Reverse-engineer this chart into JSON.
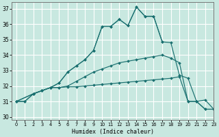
{
  "xlabel": "Humidex (Indice chaleur)",
  "xlim": [
    -0.5,
    23
  ],
  "ylim": [
    29.8,
    37.4
  ],
  "yticks": [
    30,
    31,
    32,
    33,
    34,
    35,
    36,
    37
  ],
  "xticks": [
    0,
    1,
    2,
    3,
    4,
    5,
    6,
    7,
    8,
    9,
    10,
    11,
    12,
    13,
    14,
    15,
    16,
    17,
    18,
    19,
    20,
    21,
    22,
    23
  ],
  "bg_color": "#c8e8e0",
  "grid_color": "#ffffff",
  "line_color": "#1a7070",
  "line1_x": [
    0,
    2,
    3,
    4,
    5,
    6,
    7,
    8,
    9,
    10,
    11,
    12,
    13,
    14,
    15,
    16,
    17,
    18,
    19,
    20,
    21,
    22,
    23
  ],
  "line1_y": [
    31.0,
    31.5,
    31.7,
    31.9,
    32.2,
    32.9,
    33.3,
    33.7,
    34.3,
    35.85,
    35.85,
    36.3,
    35.9,
    37.1,
    36.5,
    36.5,
    34.85,
    34.8,
    32.7,
    32.5,
    31.0,
    31.1,
    30.5
  ],
  "line2_x": [
    0,
    2,
    3,
    4,
    5,
    6,
    7,
    8,
    9,
    10,
    11,
    12,
    13,
    14,
    15,
    16,
    17
  ],
  "line2_y": [
    31.0,
    31.5,
    31.7,
    31.9,
    32.2,
    32.9,
    33.3,
    33.7,
    34.3,
    35.85,
    35.85,
    36.3,
    35.9,
    37.1,
    36.5,
    36.5,
    34.85
  ],
  "line3_x": [
    0,
    1,
    2,
    3,
    4,
    5,
    6,
    7,
    8,
    9,
    10,
    11,
    12,
    13,
    14,
    15,
    16,
    17,
    18,
    19,
    20,
    21,
    22,
    23
  ],
  "line3_y": [
    31.0,
    31.0,
    31.5,
    31.7,
    31.9,
    31.9,
    32.0,
    32.3,
    32.6,
    32.9,
    33.1,
    33.3,
    33.5,
    33.6,
    33.7,
    33.8,
    33.9,
    34.0,
    33.8,
    33.5,
    31.0,
    31.0,
    30.5,
    30.5
  ],
  "line4_x": [
    0,
    1,
    2,
    3,
    4,
    5,
    6,
    7,
    8,
    9,
    10,
    11,
    12,
    13,
    14,
    15,
    16,
    17,
    18,
    19,
    20,
    21,
    22,
    23
  ],
  "line4_y": [
    31.0,
    31.0,
    31.5,
    31.7,
    31.9,
    31.9,
    31.95,
    31.95,
    32.0,
    32.05,
    32.1,
    32.15,
    32.2,
    32.25,
    32.3,
    32.35,
    32.4,
    32.45,
    32.5,
    32.6,
    31.0,
    31.0,
    30.5,
    30.5
  ]
}
